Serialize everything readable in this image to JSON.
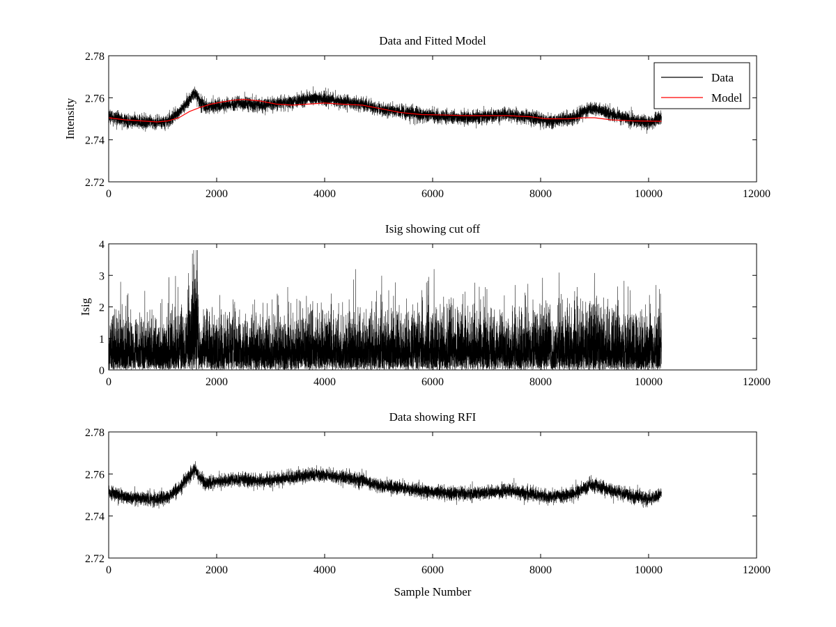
{
  "figure": {
    "background": "#ffffff",
    "axis_color": "#000000"
  },
  "chart_data": [
    {
      "type": "line",
      "title": "Data and Fitted Model",
      "xlabel": "",
      "ylabel": "Intensity",
      "xlim": [
        0,
        12000
      ],
      "ylim": [
        2.72,
        2.78
      ],
      "xticks": [
        "0",
        "2000",
        "4000",
        "6000",
        "8000",
        "10000",
        "12000"
      ],
      "yticks": [
        "2.72",
        "2.74",
        "2.76",
        "2.78"
      ],
      "grid": false,
      "legend_position": "top-right",
      "series": [
        {
          "name": "Data",
          "color": "#000000",
          "style": "noisy",
          "n_points": 10240,
          "noise_amplitude": 0.0035,
          "x": [
            0,
            300,
            600,
            900,
            1100,
            1300,
            1450,
            1600,
            1680,
            1800,
            2100,
            2400,
            2800,
            3200,
            3700,
            4000,
            4400,
            4700,
            5000,
            5400,
            5800,
            6200,
            6600,
            7000,
            7400,
            7800,
            8200,
            8600,
            8900,
            9050,
            9300,
            9700,
            10000,
            10240
          ],
          "values": [
            2.7515,
            2.749,
            2.7485,
            2.748,
            2.749,
            2.753,
            2.7575,
            2.7625,
            2.7585,
            2.7555,
            2.7565,
            2.7575,
            2.7565,
            2.7575,
            2.7595,
            2.7595,
            2.758,
            2.757,
            2.7545,
            2.7535,
            2.752,
            2.751,
            2.7505,
            2.751,
            2.752,
            2.7505,
            2.749,
            2.7505,
            2.7545,
            2.7545,
            2.752,
            2.7495,
            2.748,
            2.7505
          ]
        },
        {
          "name": "Model",
          "color": "#ff0000",
          "style": "smooth",
          "x": [
            0,
            300,
            600,
            900,
            1100,
            1300,
            1500,
            1700,
            1900,
            2100,
            2300,
            2500,
            2800,
            3100,
            3400,
            3700,
            4000,
            4300,
            4700,
            5000,
            5400,
            5800,
            6200,
            6600,
            7000,
            7400,
            7800,
            8100,
            8500,
            8800,
            9000,
            9300,
            9700,
            10240
          ],
          "values": [
            2.7505,
            2.7495,
            2.749,
            2.7485,
            2.749,
            2.7505,
            2.7535,
            2.7555,
            2.757,
            2.758,
            2.7588,
            2.7592,
            2.7585,
            2.757,
            2.7565,
            2.757,
            2.7575,
            2.757,
            2.7565,
            2.755,
            2.753,
            2.752,
            2.7518,
            2.7515,
            2.7515,
            2.7515,
            2.751,
            2.75,
            2.75,
            2.7505,
            2.7505,
            2.7495,
            2.749,
            2.7488
          ]
        }
      ]
    },
    {
      "type": "line",
      "title": "Isig showing cut off",
      "xlabel": "",
      "ylabel": "Isig",
      "xlim": [
        0,
        12000
      ],
      "ylim": [
        0,
        4
      ],
      "xticks": [
        "0",
        "2000",
        "4000",
        "6000",
        "8000",
        "10000",
        "12000"
      ],
      "yticks": [
        "0",
        "1",
        "2",
        "3",
        "4"
      ],
      "grid": false,
      "series": [
        {
          "color": "#000000",
          "style": "abs-noise",
          "n_points": 10240,
          "x": [
            0,
            1000,
            1450,
            1560,
            1620,
            1680,
            1800,
            4000,
            8600,
            9000,
            9400,
            10240
          ],
          "values": [
            0.8,
            0.75,
            0.85,
            1.6,
            1.9,
            0.6,
            0.8,
            0.8,
            0.85,
            1.05,
            0.8,
            0.8
          ]
        }
      ]
    },
    {
      "type": "line",
      "title": "Data showing RFI",
      "xlabel": "Sample Number",
      "ylabel": "",
      "xlim": [
        0,
        12000
      ],
      "ylim": [
        2.72,
        2.78
      ],
      "xticks": [
        "0",
        "2000",
        "4000",
        "6000",
        "8000",
        "10000",
        "12000"
      ],
      "yticks": [
        "2.72",
        "2.74",
        "2.76",
        "2.78"
      ],
      "grid": false,
      "series": [
        {
          "color": "#000000",
          "style": "noisy",
          "n_points": 10240,
          "noise_amplitude": 0.0035,
          "x": [
            0,
            300,
            600,
            900,
            1100,
            1300,
            1450,
            1600,
            1680,
            1800,
            2100,
            2400,
            2800,
            3200,
            3700,
            4000,
            4400,
            4700,
            5000,
            5400,
            5800,
            6200,
            6600,
            7000,
            7400,
            7800,
            8200,
            8600,
            8900,
            9050,
            9300,
            9700,
            10000,
            10240
          ],
          "values": [
            2.7515,
            2.749,
            2.7485,
            2.748,
            2.749,
            2.753,
            2.7575,
            2.7625,
            2.7585,
            2.7555,
            2.7565,
            2.7575,
            2.7565,
            2.7575,
            2.7595,
            2.7595,
            2.758,
            2.757,
            2.7545,
            2.7535,
            2.752,
            2.751,
            2.7505,
            2.751,
            2.752,
            2.7505,
            2.749,
            2.7505,
            2.7545,
            2.7545,
            2.752,
            2.7495,
            2.748,
            2.7505
          ]
        }
      ]
    }
  ]
}
